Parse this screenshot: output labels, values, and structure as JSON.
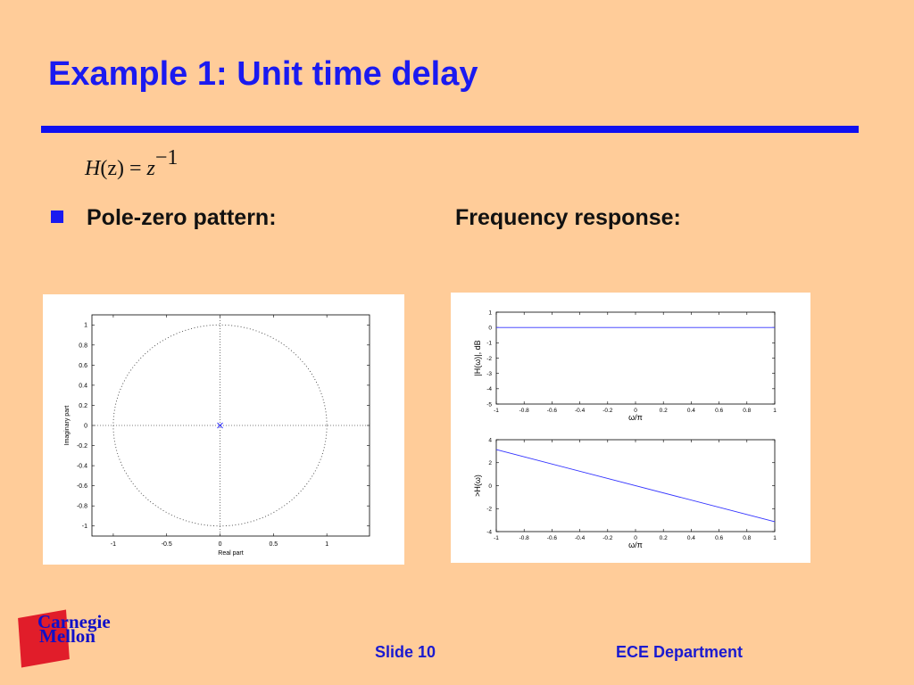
{
  "slide": {
    "title": "Example 1: Unit time delay",
    "equation": {
      "lhs": "H",
      "arg": "(z)",
      "eq": "=",
      "rhs": "z",
      "exp": "−1"
    },
    "bullet_pz": "Pole-zero pattern:",
    "label_fr": "Frequency response:",
    "footer_slide": "Slide 10",
    "footer_dept": "ECE Department",
    "logo_line1": "Carnegie",
    "logo_line2": "Mellon"
  },
  "colors": {
    "title": "#1a1af0",
    "rule": "#1010f0",
    "background": "#ffcc99",
    "plot_line": "#3333ff",
    "logo_red": "#e11d2a"
  },
  "chart_data": [
    {
      "type": "scatter",
      "name": "pole-zero",
      "xlabel": "Real part",
      "ylabel": "Imaginary part",
      "xlim": [
        -1.2,
        1.4
      ],
      "ylim": [
        -1.1,
        1.1
      ],
      "xticks": [
        -1,
        -0.5,
        0,
        0.5,
        1
      ],
      "xtick_labels": [
        "-1",
        "-0.5",
        "0",
        "0.5",
        "1"
      ],
      "yticks": [
        1,
        0.8,
        0.6,
        0.4,
        0.2,
        0,
        -0.2,
        -0.4,
        -0.6,
        -0.8,
        -1
      ],
      "ytick_labels": [
        "1",
        "0.8",
        "0.6",
        "0.4",
        "0.2",
        "0",
        "-0.2",
        "-0.4",
        "-0.6",
        "-0.8",
        "-1"
      ],
      "unit_circle": true,
      "poles": [
        {
          "x": 0,
          "y": 0
        }
      ],
      "zeros": []
    },
    {
      "type": "line",
      "name": "magnitude",
      "xlabel": "ω/π",
      "ylabel": "|H(ω)|, dB",
      "xlim": [
        -1,
        1
      ],
      "ylim": [
        -5,
        1
      ],
      "xticks": [
        -1,
        -0.8,
        -0.6,
        -0.4,
        -0.2,
        0,
        0.2,
        0.4,
        0.6,
        0.8,
        1
      ],
      "xtick_labels": [
        "-1",
        "-0.8",
        "-0.6",
        "-0.4",
        "-0.2",
        "0",
        "0.2",
        "0.4",
        "0.6",
        "0.8",
        "1"
      ],
      "yticks": [
        1,
        0,
        -1,
        -2,
        -3,
        -4,
        -5
      ],
      "ytick_labels": [
        "1",
        "0",
        "-1",
        "-2",
        "-3",
        "-4",
        "-5"
      ],
      "x": [
        -1,
        1
      ],
      "y": [
        0,
        0
      ]
    },
    {
      "type": "line",
      "name": "phase",
      "xlabel": "ω/π",
      "ylabel": ">H(ω)",
      "xlim": [
        -1,
        1
      ],
      "ylim": [
        -4,
        4
      ],
      "xticks": [
        -1,
        -0.8,
        -0.6,
        -0.4,
        -0.2,
        0,
        0.2,
        0.4,
        0.6,
        0.8,
        1
      ],
      "xtick_labels": [
        "-1",
        "-0.8",
        "-0.6",
        "-0.4",
        "-0.2",
        "0",
        "0.2",
        "0.4",
        "0.6",
        "0.8",
        "1"
      ],
      "yticks": [
        4,
        2,
        0,
        -2,
        -4
      ],
      "ytick_labels": [
        "4",
        "2",
        "0",
        "-2",
        "-4"
      ],
      "x": [
        -1,
        1
      ],
      "y": [
        3.1416,
        -3.1416
      ]
    }
  ]
}
